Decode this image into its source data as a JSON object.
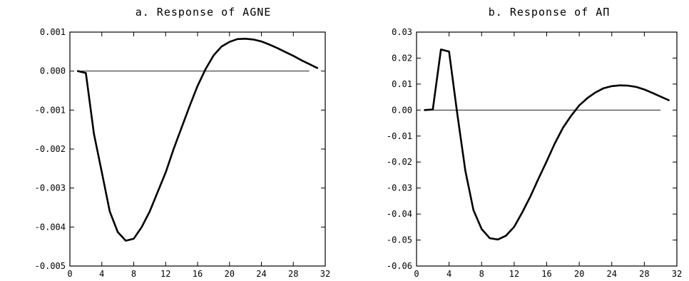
{
  "chart_data": [
    {
      "type": "line",
      "title": "a. Response of AGNE",
      "xlabel": "",
      "ylabel": "",
      "xlim": [
        0,
        32
      ],
      "ylim": [
        -0.005,
        0.001
      ],
      "x_ticks": [
        0,
        4,
        8,
        12,
        16,
        20,
        24,
        28,
        32
      ],
      "x_tick_labels": [
        "0",
        "4",
        "8",
        "12",
        "16",
        "20",
        "24",
        "28",
        "32"
      ],
      "y_ticks": [
        0.001,
        0.0,
        -0.001,
        -0.002,
        -0.003,
        -0.004,
        -0.005
      ],
      "y_tick_labels": [
        "0.001",
        "0.000",
        "-0.001",
        "-0.002",
        "-0.003",
        "-0.004",
        "-0.005"
      ],
      "reference_line": {
        "y": 0,
        "x_range": [
          1,
          30
        ]
      },
      "grid": false,
      "series": [
        {
          "x": [
            1,
            2,
            3,
            4,
            5,
            6,
            7,
            8,
            9,
            10,
            11,
            12,
            13,
            14,
            15,
            16,
            17,
            18,
            19,
            20,
            21,
            22,
            23,
            24,
            25,
            26,
            27,
            28,
            29,
            30,
            31
          ],
          "values": [
            0.0,
            -5e-05,
            -0.0016,
            -0.0026,
            -0.0036,
            -0.00413,
            -0.00435,
            -0.0043,
            -0.004,
            -0.0036,
            -0.0031,
            -0.0026,
            -0.002,
            -0.00145,
            -0.0009,
            -0.00038,
            5e-05,
            0.0004,
            0.00063,
            0.00075,
            0.00082,
            0.00083,
            0.00081,
            0.00076,
            0.00068,
            0.00059,
            0.00049,
            0.00039,
            0.00028,
            0.00018,
            8e-05
          ]
        }
      ]
    },
    {
      "type": "line",
      "title": "b. Response of AΠ",
      "xlabel": "",
      "ylabel": "",
      "xlim": [
        0,
        32
      ],
      "ylim": [
        -0.06,
        0.03
      ],
      "x_ticks": [
        0,
        4,
        8,
        12,
        16,
        20,
        24,
        28,
        32
      ],
      "x_tick_labels": [
        "0",
        "4",
        "8",
        "12",
        "16",
        "20",
        "24",
        "28",
        "32"
      ],
      "y_ticks": [
        0.03,
        0.02,
        0.01,
        0.0,
        -0.01,
        -0.02,
        -0.03,
        -0.04,
        -0.05,
        -0.06
      ],
      "y_tick_labels": [
        "0.03",
        "0.02",
        "0.01",
        "0.00",
        "-0.01",
        "-0.02",
        "-0.03",
        "-0.04",
        "-0.05",
        "-0.06"
      ],
      "reference_line": {
        "y": 0,
        "x_range": [
          1,
          30
        ]
      },
      "grid": false,
      "series": [
        {
          "x": [
            1,
            2,
            3,
            4,
            5,
            6,
            7,
            8,
            9,
            10,
            11,
            12,
            13,
            14,
            15,
            16,
            17,
            18,
            19,
            20,
            21,
            22,
            23,
            24,
            25,
            26,
            27,
            28,
            29,
            30,
            31
          ],
          "values": [
            0.0,
            0.0002,
            0.0233,
            0.0225,
            -0.0012,
            -0.0233,
            -0.0385,
            -0.0458,
            -0.0493,
            -0.0498,
            -0.0483,
            -0.0449,
            -0.0393,
            -0.0332,
            -0.0263,
            -0.0197,
            -0.0128,
            -0.0068,
            -0.0022,
            0.0018,
            0.0046,
            0.0068,
            0.0084,
            0.0092,
            0.0095,
            0.0094,
            0.0089,
            0.0079,
            0.0066,
            0.0052,
            0.0038
          ]
        }
      ]
    }
  ]
}
